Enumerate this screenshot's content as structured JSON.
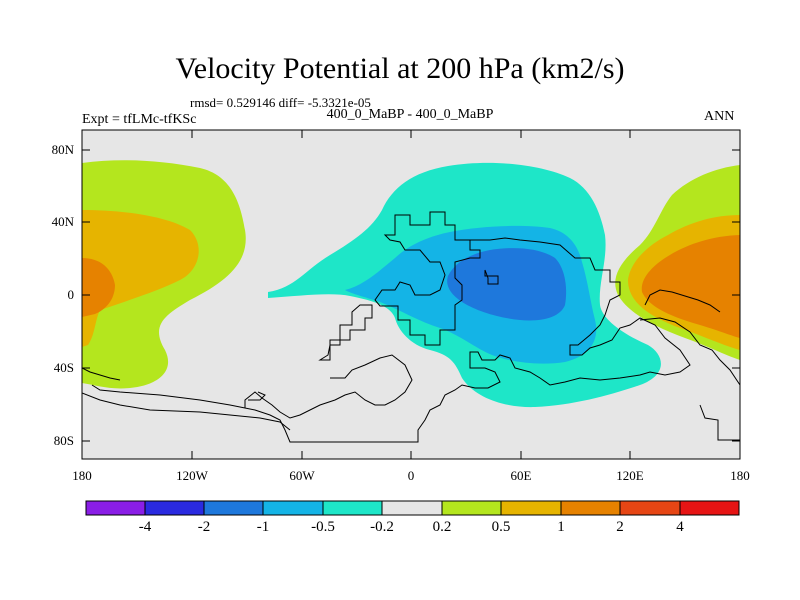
{
  "title": "Velocity Potential at 200 hPa (km2/s)",
  "subtitle": "rmsd= 0.529146  diff= -5.3321e-05",
  "center_label": "400_0_MaBP - 400_0_MaBP",
  "left_label": "Expt = tfLMc-tfKSc",
  "right_label": "ANN",
  "yaxis": {
    "ticks": [
      "80N",
      "40N",
      "0",
      "40S",
      "80S"
    ]
  },
  "xaxis": {
    "ticks": [
      "180",
      "120W",
      "60W",
      "0",
      "60E",
      "120E",
      "180"
    ]
  },
  "colorbar": {
    "labels": [
      "-4",
      "-2",
      "-1",
      "-0.5",
      "-0.2",
      "0.2",
      "0.5",
      "1",
      "2",
      "4"
    ],
    "colors": [
      "#8a1ee6",
      "#2a2ae0",
      "#1e78dc",
      "#14b4e6",
      "#1ee6c8",
      "#e6e6e6",
      "#b4e61e",
      "#e6b400",
      "#e68200",
      "#e64614",
      "#e61414"
    ]
  },
  "fill_colors": {
    "neutral": "#e6e6e6",
    "pos_02": "#b4e61e",
    "pos_05": "#e6b400",
    "pos_1": "#e68200",
    "neg_02": "#1ee6c8",
    "neg_05": "#14b4e6",
    "neg_1": "#1e78dc"
  }
}
